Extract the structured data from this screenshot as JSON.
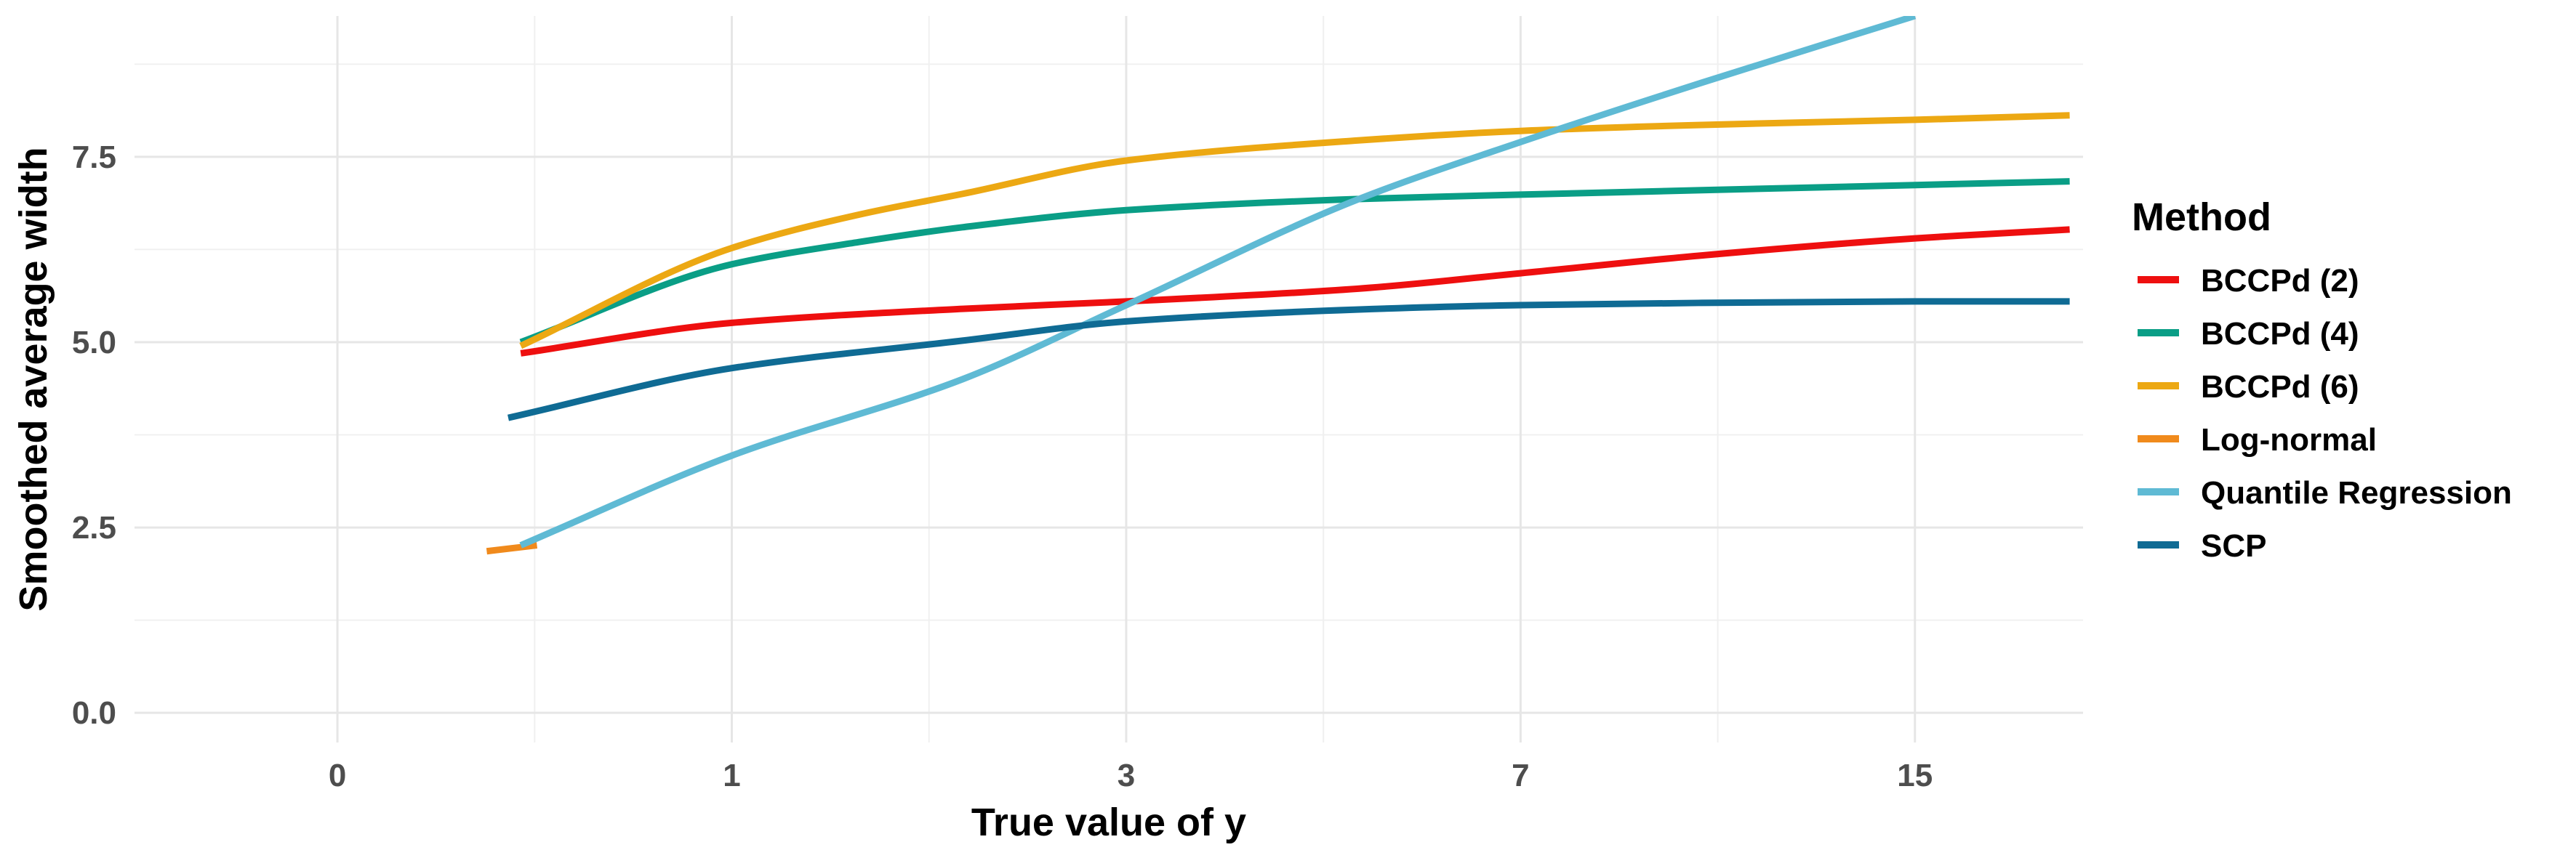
{
  "chart_data": {
    "type": "line",
    "title": "",
    "xlabel": "True value of y",
    "ylabel": "Smoothed average width",
    "x_scale": "log2(1+y)",
    "x_ticks": [
      0,
      1,
      3,
      7,
      15
    ],
    "x_tick_labels": [
      "0",
      "1",
      "3",
      "7",
      "15"
    ],
    "xlim": [
      -0.3,
      20.5
    ],
    "y_ticks": [
      0,
      2.5,
      5,
      7.5
    ],
    "y_tick_labels": [
      "0.0",
      "2.5",
      "5.0",
      "7.5"
    ],
    "ylim": [
      -0.4,
      9.4
    ],
    "grid": true,
    "legend": {
      "title": "Method",
      "placement": "right"
    },
    "series": [
      {
        "name": "BCCPd (2)",
        "color": "#ee0f0f",
        "x": [
          0.38,
          1,
          2,
          3,
          5,
          7,
          10,
          15,
          20
        ],
        "y": [
          4.85,
          5.26,
          5.45,
          5.55,
          5.72,
          5.93,
          6.17,
          6.4,
          6.52
        ]
      },
      {
        "name": "BCCPd (4)",
        "color": "#0a9e86",
        "x": [
          0.38,
          1,
          1.5,
          2,
          3,
          5,
          7,
          10,
          15,
          20
        ],
        "y": [
          5.0,
          6.05,
          6.35,
          6.55,
          6.78,
          6.93,
          6.99,
          7.05,
          7.12,
          7.17
        ]
      },
      {
        "name": "BCCPd (6)",
        "color": "#eca813",
        "x": [
          0.38,
          1,
          1.5,
          2,
          3,
          5,
          7,
          10,
          15,
          20
        ],
        "y": [
          4.95,
          6.27,
          6.72,
          7.0,
          7.45,
          7.72,
          7.85,
          7.93,
          8.0,
          8.06
        ]
      },
      {
        "name": "Log-normal",
        "color": "#f08a1c",
        "x": [
          0.3,
          0.42
        ],
        "y": [
          2.18,
          2.26
        ]
      },
      {
        "name": "Quantile Regression",
        "color": "#5fbad4",
        "x": [
          0.38,
          1,
          2,
          3,
          5,
          7,
          10,
          15
        ],
        "y": [
          2.26,
          3.47,
          4.5,
          5.5,
          6.92,
          7.7,
          8.5,
          9.4
        ]
      },
      {
        "name": "SCP",
        "color": "#0f6b94",
        "x": [
          0.35,
          1,
          2,
          3,
          5,
          7,
          10,
          15,
          20
        ],
        "y": [
          3.98,
          4.65,
          5.02,
          5.28,
          5.44,
          5.5,
          5.53,
          5.55,
          5.55
        ]
      }
    ]
  }
}
